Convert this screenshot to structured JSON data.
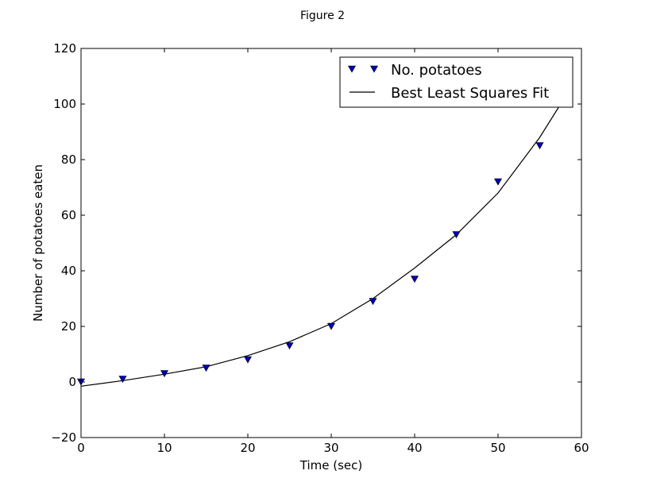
{
  "window": {
    "title": "Figure 2"
  },
  "chart_data": {
    "type": "scatter",
    "title": "",
    "xlabel": "Time (sec)",
    "ylabel": "Number of potatoes eaten",
    "xlim": [
      0,
      60
    ],
    "ylim": [
      -20,
      120
    ],
    "x_ticks": [
      "0",
      "10",
      "20",
      "30",
      "40",
      "50",
      "60"
    ],
    "y_ticks": [
      "−20",
      "0",
      "20",
      "40",
      "60",
      "80",
      "100",
      "120"
    ],
    "grid": false,
    "legend_position": "top-right",
    "series": [
      {
        "name": "No. potatoes",
        "kind": "scatter",
        "marker": "triangle-down",
        "color": "#0000b2",
        "x": [
          0,
          5,
          10,
          15,
          20,
          25,
          30,
          35,
          40,
          45,
          50,
          55
        ],
        "y": [
          0,
          1,
          3,
          5,
          8,
          13,
          20,
          29,
          37,
          53,
          72,
          85
        ]
      },
      {
        "name": "Best Least Squares Fit",
        "kind": "line",
        "color": "#000000",
        "x": [
          0,
          5,
          10,
          15,
          20,
          25,
          30,
          35,
          40,
          45,
          50,
          55,
          57.5
        ],
        "y": [
          -1.5,
          0.5,
          2.8,
          5.5,
          9.5,
          14.5,
          21,
          30,
          41,
          53,
          68,
          88,
          100
        ]
      }
    ]
  }
}
